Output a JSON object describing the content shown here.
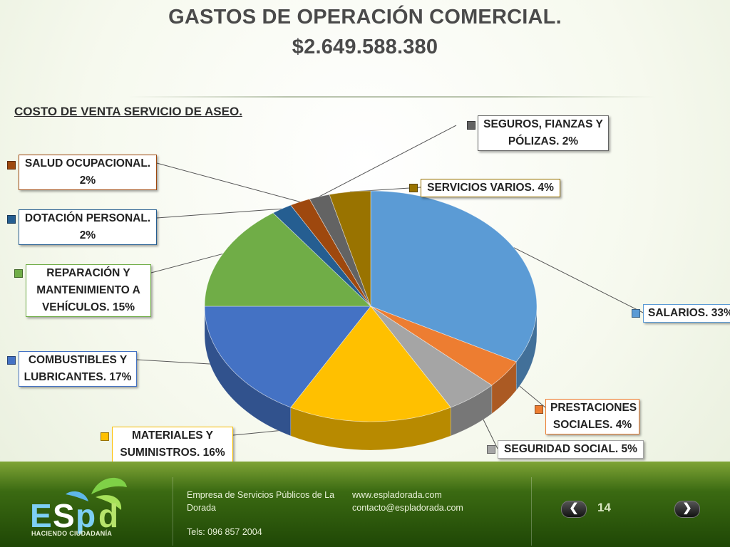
{
  "title_line1": "GASTOS DE OPERACIÓN COMERCIAL.",
  "title_line2": "$2.649.588.380",
  "subtitle": "COSTO DE VENTA SERVICIO DE ASEO.",
  "chart_data": {
    "type": "pie",
    "title": "GASTOS DE OPERACIÓN COMERCIAL. $2.649.588.380",
    "subtitle": "COSTO DE VENTA SERVICIO DE ASEO.",
    "slices": [
      {
        "label": "SALARIOS.",
        "value": 33,
        "display": "SALARIOS. 33%",
        "color": "#5B9BD5"
      },
      {
        "label": "PRESTACIONES SOCIALES.",
        "value": 4,
        "display": "PRESTACIONES SOCIALES. 4%",
        "color": "#ED7D31"
      },
      {
        "label": "SEGURIDAD SOCIAL.",
        "value": 5,
        "display": "SEGURIDAD SOCIAL. 5%",
        "color": "#A5A5A5"
      },
      {
        "label": "MATERIALES Y SUMINISTROS.",
        "value": 16,
        "display": "MATERIALES Y SUMINISTROS. 16%",
        "color": "#FFC000"
      },
      {
        "label": "COMBUSTIBLES Y LUBRICANTES.",
        "value": 17,
        "display": "COMBUSTIBLES Y LUBRICANTES. 17%",
        "color": "#4472C4"
      },
      {
        "label": "REPARACIÓN Y MANTENIMIENTO A VEHÍCULOS.",
        "value": 15,
        "display": "REPARACIÓN Y MANTENIMIENTO A VEHÍCULOS. 15%",
        "color": "#70AD47"
      },
      {
        "label": "DOTACIÓN PERSONAL.",
        "value": 2,
        "display": "DOTACIÓN PERSONAL. 2%",
        "color": "#255E91"
      },
      {
        "label": "SALUD OCUPACIONAL.",
        "value": 2,
        "display": "SALUD OCUPACIONAL. 2%",
        "color": "#9E480E"
      },
      {
        "label": "SEGUROS, FIANZAS Y PÓLIZAS.",
        "value": 2,
        "display": "SEGUROS, FIANZAS Y PÓLIZAS. 2%",
        "color": "#636363"
      },
      {
        "label": "SERVICIOS VARIOS.",
        "value": 4,
        "display": "SERVICIOS VARIOS. 4%",
        "color": "#997300"
      }
    ]
  },
  "labels": {
    "salarios": [
      "SALARIOS. 33%"
    ],
    "prestaciones": [
      "PRESTACIONES",
      "SOCIALES. 4%"
    ],
    "seguridad": [
      "SEGURIDAD SOCIAL. 5%"
    ],
    "materiales": [
      "MATERIALES Y",
      "SUMINISTROS. 16%"
    ],
    "combustibles": [
      "COMBUSTIBLES Y",
      "LUBRICANTES. 17%"
    ],
    "reparacion": [
      "REPARACIÓN Y",
      "MANTENIMIENTO A",
      "VEHÍCULOS. 15%"
    ],
    "dotacion": [
      "DOTACIÓN PERSONAL.",
      "2%"
    ],
    "salud": [
      "SALUD OCUPACIONAL.",
      "2%"
    ],
    "seguros": [
      "SEGUROS, FIANZAS Y",
      "PÓLIZAS. 2%"
    ],
    "servicios": [
      "SERVICIOS VARIOS. 4%"
    ]
  },
  "footer": {
    "company_line1": "Empresa de Servicios Públicos de La",
    "company_line2": "Dorada",
    "phone": "Tels:  096 857 2004",
    "web": "www.espladorada.com",
    "email": "contacto@espladorada.com",
    "page_number": "14",
    "logo_text": "HACIENDO CIUDADANÍA",
    "prev_icon": "chevron-left-icon",
    "next_icon": "chevron-right-icon"
  }
}
